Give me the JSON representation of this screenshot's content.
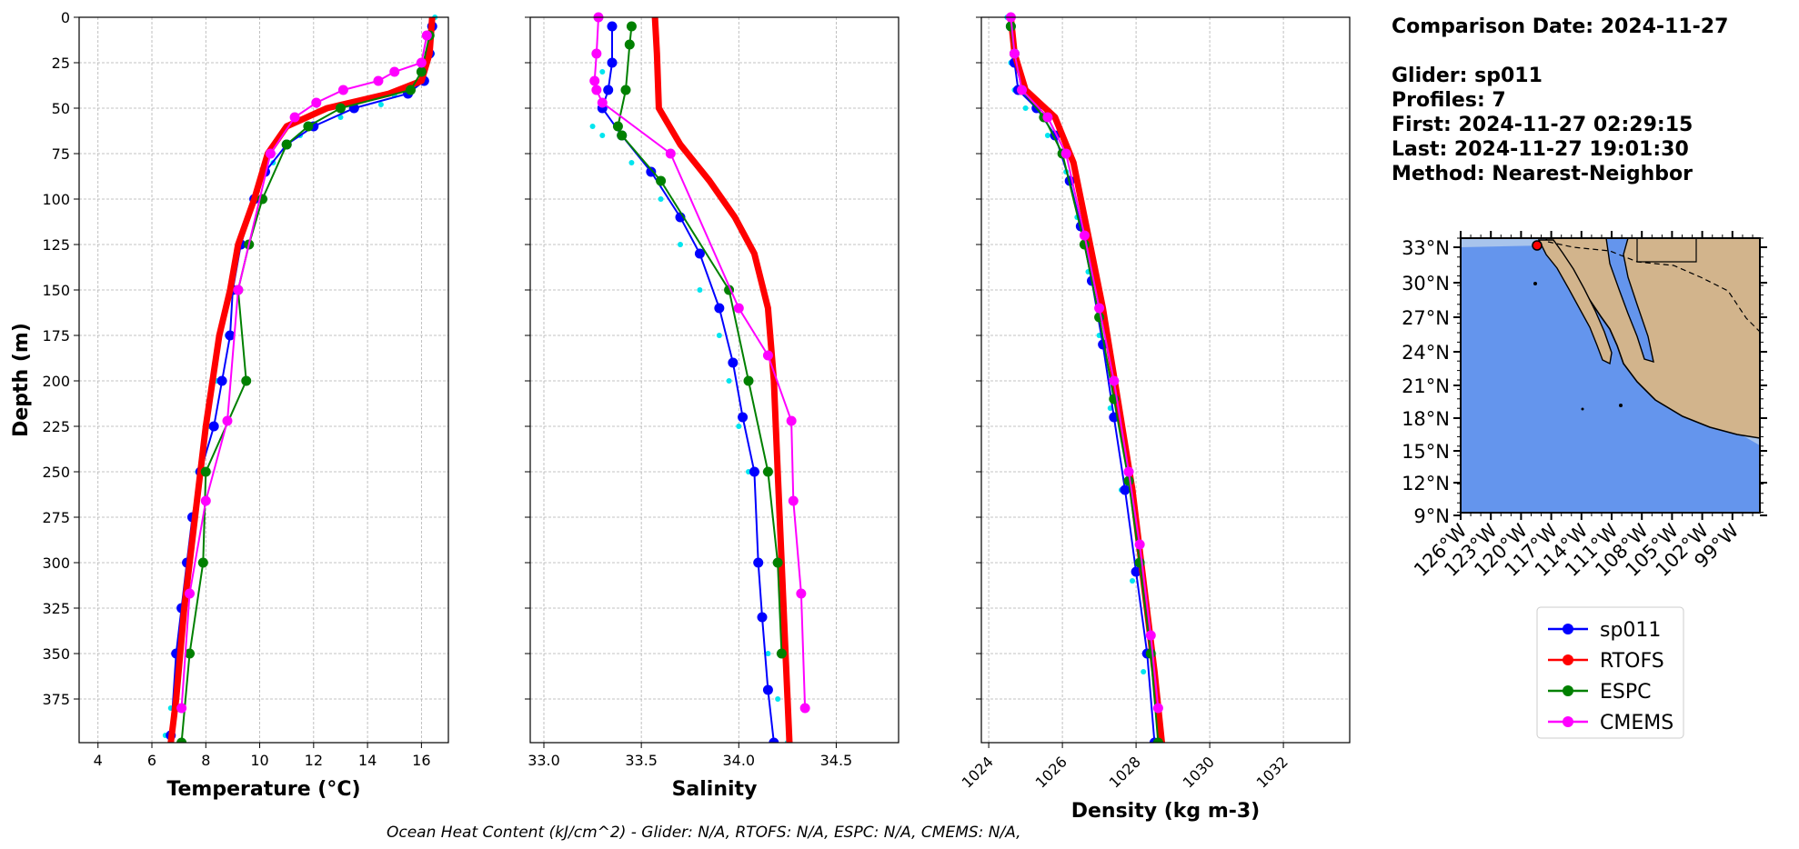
{
  "info": {
    "comparison_date": "Comparison Date: 2024-11-27",
    "glider": "Glider: sp011",
    "profiles": "Profiles: 7",
    "first": "First: 2024-11-27 02:29:15",
    "last": "Last: 2024-11-27 19:01:30",
    "method": "Method: Nearest-Neighbor"
  },
  "ohc_text": "Ocean Heat Content (kJ/cm^2) - Glider: N/A,  RTOFS: N/A,  ESPC: N/A,  CMEMS: N/A,",
  "colors": {
    "sp011": "#0000ff",
    "sp011_raw": "#00e5ee",
    "rtofs": "#ff0000",
    "espc": "#008000",
    "cmems": "#ff00ff",
    "ocean": "#6495ed",
    "shelf": "#a8c4ec",
    "land": "#d2b48c"
  },
  "legend": [
    "sp011",
    "RTOFS",
    "ESPC",
    "CMEMS"
  ],
  "map": {
    "lat_ticks": [
      "33°N",
      "30°N",
      "27°N",
      "24°N",
      "21°N",
      "18°N",
      "15°N",
      "12°N",
      "9°N"
    ],
    "lon_ticks": [
      "126°W",
      "123°W",
      "120°W",
      "117°W",
      "114°W",
      "111°W",
      "108°W",
      "105°W",
      "102°W",
      "99°W"
    ],
    "glider_marker": "sp011 location"
  },
  "chart_data": [
    {
      "type": "line",
      "xlabel": "Temperature (°C)",
      "ylabel": "Depth (m)",
      "xlim": [
        3.3,
        17.0
      ],
      "ylim": [
        399,
        0
      ],
      "xticks": [
        4,
        6,
        8,
        10,
        12,
        14,
        16
      ],
      "yticks": [
        0,
        25,
        50,
        75,
        100,
        125,
        150,
        175,
        200,
        225,
        250,
        275,
        300,
        325,
        350,
        375
      ],
      "grid": true,
      "series": [
        {
          "name": "sp011 raw",
          "key": "sp011_raw",
          "style": "dots",
          "x": [
            16.5,
            16.4,
            16.1,
            15.0,
            14.5,
            13.0,
            11.5,
            10.5,
            9.8,
            9.4,
            9.0,
            8.8,
            8.4,
            8.1,
            7.7,
            7.3,
            7.0,
            6.7,
            6.5
          ],
          "y": [
            0,
            20,
            35,
            43,
            48,
            55,
            65,
            80,
            100,
            125,
            150,
            175,
            200,
            225,
            250,
            300,
            350,
            380,
            395
          ]
        },
        {
          "name": "sp011",
          "key": "sp011",
          "style": "line-dots",
          "x": [
            16.4,
            16.3,
            16.1,
            15.5,
            13.5,
            12.0,
            11.0,
            10.2,
            9.8,
            9.3,
            9.0,
            8.9,
            8.6,
            8.3,
            7.8,
            7.5,
            7.3,
            7.1,
            6.9,
            6.7
          ],
          "y": [
            5,
            20,
            35,
            42,
            50,
            60,
            70,
            85,
            100,
            125,
            150,
            175,
            200,
            225,
            250,
            275,
            300,
            325,
            350,
            395
          ]
        },
        {
          "name": "RTOFS",
          "key": "rtofs",
          "style": "thick",
          "x": [
            16.4,
            16.3,
            16.0,
            14.8,
            12.5,
            11.0,
            10.3,
            9.8,
            9.2,
            8.9,
            8.5,
            8.0,
            7.6,
            7.2,
            6.9,
            6.7
          ],
          "y": [
            0,
            20,
            35,
            42,
            50,
            60,
            75,
            100,
            125,
            150,
            175,
            225,
            275,
            325,
            375,
            399
          ]
        },
        {
          "name": "ESPC",
          "key": "espc",
          "style": "line-dots",
          "x": [
            16.3,
            16.0,
            15.6,
            13.0,
            11.8,
            11.0,
            10.1,
            9.6,
            9.2,
            9.5,
            8.0,
            7.9,
            7.4,
            7.1
          ],
          "y": [
            10,
            30,
            40,
            50,
            60,
            70,
            100,
            125,
            150,
            200,
            250,
            300,
            350,
            399
          ]
        },
        {
          "name": "CMEMS",
          "key": "cmems",
          "style": "line-dots",
          "x": [
            16.2,
            16.0,
            15.0,
            14.4,
            13.1,
            12.1,
            11.3,
            10.4,
            9.2,
            8.8,
            8.0,
            7.4,
            7.1
          ],
          "y": [
            10,
            25,
            30,
            35,
            40,
            47,
            55,
            75,
            150,
            222,
            266,
            317,
            380
          ]
        }
      ]
    },
    {
      "type": "line",
      "xlabel": "Salinity",
      "ylabel": "",
      "xlim": [
        32.93,
        34.82
      ],
      "ylim": [
        399,
        0
      ],
      "xticks": [
        33.0,
        33.5,
        34.0,
        34.5
      ],
      "yticks": [
        0,
        25,
        50,
        75,
        100,
        125,
        150,
        175,
        200,
        225,
        250,
        275,
        300,
        325,
        350,
        375
      ],
      "grid": true,
      "series": [
        {
          "name": "sp011 raw",
          "key": "sp011_raw",
          "style": "dots",
          "x": [
            33.35,
            33.3,
            33.25,
            33.3,
            33.45,
            33.6,
            33.7,
            33.8,
            33.9,
            33.95,
            34.0,
            34.05,
            34.1,
            34.15,
            34.2,
            34.25
          ],
          "y": [
            5,
            30,
            60,
            65,
            80,
            100,
            125,
            150,
            175,
            200,
            225,
            250,
            300,
            350,
            375,
            399
          ]
        },
        {
          "name": "sp011",
          "key": "sp011",
          "style": "line-dots",
          "x": [
            33.35,
            33.35,
            33.33,
            33.3,
            33.4,
            33.55,
            33.7,
            33.8,
            33.9,
            33.97,
            34.02,
            34.08,
            34.1,
            34.12,
            34.15,
            34.18
          ],
          "y": [
            5,
            25,
            40,
            50,
            65,
            85,
            110,
            130,
            160,
            190,
            220,
            250,
            300,
            330,
            370,
            399
          ]
        },
        {
          "name": "RTOFS",
          "key": "rtofs",
          "style": "thick",
          "x": [
            33.57,
            33.58,
            33.59,
            33.7,
            33.85,
            33.98,
            34.08,
            34.15,
            34.18,
            34.2,
            34.22,
            34.24,
            34.26
          ],
          "y": [
            0,
            20,
            50,
            70,
            90,
            110,
            130,
            160,
            200,
            250,
            300,
            350,
            399
          ]
        },
        {
          "name": "ESPC",
          "key": "espc",
          "style": "line-dots",
          "x": [
            33.45,
            33.44,
            33.42,
            33.38,
            33.4,
            33.6,
            33.95,
            34.05,
            34.15,
            34.2,
            34.22
          ],
          "y": [
            5,
            15,
            40,
            60,
            65,
            90,
            150,
            200,
            250,
            300,
            350
          ]
        },
        {
          "name": "CMEMS",
          "key": "cmems",
          "style": "line-dots",
          "x": [
            33.28,
            33.27,
            33.26,
            33.27,
            33.3,
            33.65,
            34.0,
            34.15,
            34.27,
            34.28,
            34.32,
            34.34
          ],
          "y": [
            0,
            20,
            35,
            40,
            47,
            75,
            160,
            186,
            222,
            266,
            317,
            380
          ]
        }
      ]
    },
    {
      "type": "line",
      "xlabel": "Density (kg m-3)",
      "ylabel": "",
      "xlim": [
        1023.8,
        1033.8
      ],
      "ylim": [
        399,
        0
      ],
      "xticks": [
        1024,
        1026,
        1028,
        1030,
        1032
      ],
      "yticks": [
        0,
        25,
        50,
        75,
        100,
        125,
        150,
        175,
        200,
        225,
        250,
        275,
        300,
        325,
        350,
        375
      ],
      "grid": true,
      "series": [
        {
          "name": "sp011 raw",
          "key": "sp011_raw",
          "style": "dots",
          "x": [
            1024.5,
            1024.6,
            1024.7,
            1025.0,
            1025.6,
            1026.1,
            1026.4,
            1026.7,
            1027.0,
            1027.3,
            1027.6,
            1027.9,
            1028.2,
            1028.5
          ],
          "y": [
            0,
            25,
            40,
            50,
            65,
            85,
            110,
            140,
            175,
            215,
            260,
            310,
            360,
            399
          ]
        },
        {
          "name": "sp011",
          "key": "sp011",
          "style": "line-dots",
          "x": [
            1024.6,
            1024.7,
            1024.8,
            1025.3,
            1025.8,
            1026.2,
            1026.5,
            1026.8,
            1027.1,
            1027.4,
            1027.7,
            1028.0,
            1028.3,
            1028.5
          ],
          "y": [
            5,
            25,
            40,
            50,
            65,
            90,
            115,
            145,
            180,
            220,
            260,
            305,
            350,
            399
          ]
        },
        {
          "name": "RTOFS",
          "key": "rtofs",
          "style": "thick",
          "x": [
            1024.6,
            1024.7,
            1025.0,
            1025.8,
            1026.3,
            1026.7,
            1027.1,
            1027.5,
            1027.9,
            1028.2,
            1028.5,
            1028.7
          ],
          "y": [
            0,
            20,
            40,
            55,
            80,
            120,
            160,
            210,
            260,
            310,
            360,
            399
          ]
        },
        {
          "name": "ESPC",
          "key": "espc",
          "style": "line-dots",
          "x": [
            1024.6,
            1024.7,
            1024.9,
            1025.5,
            1026.0,
            1026.6,
            1027.0,
            1027.4,
            1027.8,
            1028.1,
            1028.4,
            1028.6
          ],
          "y": [
            5,
            20,
            40,
            55,
            75,
            125,
            165,
            210,
            255,
            300,
            350,
            399
          ]
        },
        {
          "name": "CMEMS",
          "key": "cmems",
          "style": "line-dots",
          "x": [
            1024.6,
            1024.7,
            1024.9,
            1025.6,
            1026.1,
            1026.6,
            1027.0,
            1027.4,
            1027.8,
            1028.1,
            1028.4,
            1028.6
          ],
          "y": [
            0,
            20,
            40,
            55,
            75,
            120,
            160,
            200,
            250,
            290,
            340,
            380
          ]
        }
      ]
    }
  ]
}
